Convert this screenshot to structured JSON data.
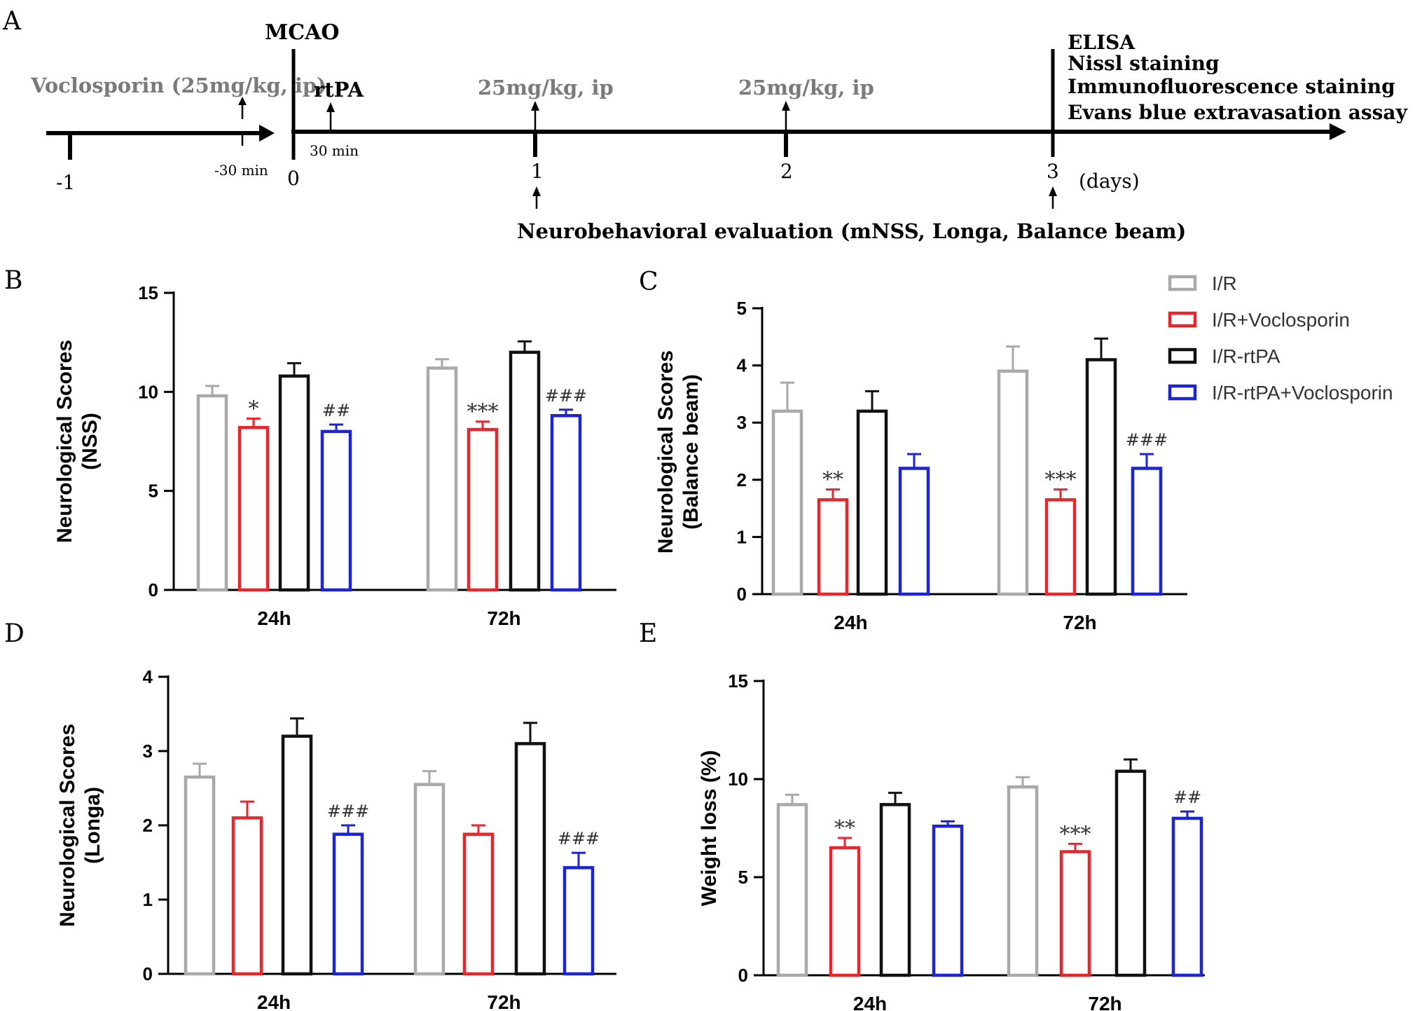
{
  "timeline": {
    "panel_label": "A",
    "pre_drug": "Voclosporin (25mg/kg, ip)",
    "mcao": "MCAO",
    "rtpa": "rtPA",
    "rtpa_delay": "30 min",
    "pre_time": "-30 min",
    "dose_day1": "25mg/kg, ip",
    "dose_day2": "25mg/kg, ip",
    "day_ticks": [
      "-1",
      "0",
      "1",
      "2",
      "3"
    ],
    "days_unit": "(days)",
    "endpoints": [
      "ELISA",
      "Nissl staining",
      "Immunofluorescence staining",
      "Evans blue extravasation assay"
    ],
    "eval": "Neurobehavioral evaluation (mNSS, Longa, Balance beam)"
  },
  "legend": {
    "items": [
      {
        "label": "I/R",
        "color": "#a9a9a9"
      },
      {
        "label": "I/R+Voclosporin",
        "color": "#e8262b"
      },
      {
        "label": "I/R-rtPA",
        "color": "#111111"
      },
      {
        "label": "I/R-rtPA+Voclosporin",
        "color": "#1c24d6"
      }
    ]
  },
  "chart_data": [
    {
      "panel": "B",
      "type": "bar",
      "ylabel_lines": [
        "Neurological Scores",
        "(NSS)"
      ],
      "categories": [
        "24h",
        "72h"
      ],
      "ylim": [
        0,
        15
      ],
      "yticks": [
        "0",
        "5",
        "10",
        "15"
      ],
      "series": [
        {
          "name": "I/R",
          "values": [
            9.8,
            11.2
          ],
          "errors": [
            0.5,
            0.45
          ],
          "annotations": [
            "",
            ""
          ]
        },
        {
          "name": "I/R+Voclosporin",
          "values": [
            8.2,
            8.1
          ],
          "errors": [
            0.45,
            0.4
          ],
          "annotations": [
            "*",
            "***"
          ]
        },
        {
          "name": "I/R-rtPA",
          "values": [
            10.8,
            12.0
          ],
          "errors": [
            0.65,
            0.55
          ],
          "annotations": [
            "",
            ""
          ]
        },
        {
          "name": "I/R-rtPA+Voclosporin",
          "values": [
            8.0,
            8.8
          ],
          "errors": [
            0.35,
            0.3
          ],
          "annotations": [
            "##",
            "###"
          ]
        }
      ]
    },
    {
      "panel": "C",
      "type": "bar",
      "ylabel_lines": [
        "Neurological Scores",
        "(Balance beam)"
      ],
      "categories": [
        "24h",
        "72h"
      ],
      "ylim": [
        0,
        5
      ],
      "yticks": [
        "0",
        "1",
        "2",
        "3",
        "4",
        "5"
      ],
      "series": [
        {
          "name": "I/R",
          "values": [
            3.2,
            3.9
          ],
          "errors": [
            0.5,
            0.43
          ],
          "annotations": [
            "",
            ""
          ]
        },
        {
          "name": "I/R+Voclosporin",
          "values": [
            1.65,
            1.65
          ],
          "errors": [
            0.18,
            0.18
          ],
          "annotations": [
            "**",
            "***"
          ]
        },
        {
          "name": "I/R-rtPA",
          "values": [
            3.2,
            4.1
          ],
          "errors": [
            0.35,
            0.37
          ],
          "annotations": [
            "",
            ""
          ]
        },
        {
          "name": "I/R-rtPA+Voclosporin",
          "values": [
            2.2,
            2.2
          ],
          "errors": [
            0.25,
            0.25
          ],
          "annotations": [
            "",
            "###"
          ]
        }
      ]
    },
    {
      "panel": "D",
      "type": "bar",
      "ylabel_lines": [
        "Neurological Scores",
        "(Longa)"
      ],
      "categories": [
        "24h",
        "72h"
      ],
      "ylim": [
        0,
        4
      ],
      "yticks": [
        "0",
        "1",
        "2",
        "3",
        "4"
      ],
      "series": [
        {
          "name": "I/R",
          "values": [
            2.65,
            2.55
          ],
          "errors": [
            0.18,
            0.18
          ],
          "annotations": [
            "",
            ""
          ]
        },
        {
          "name": "I/R+Voclosporin",
          "values": [
            2.1,
            1.88
          ],
          "errors": [
            0.22,
            0.12
          ],
          "annotations": [
            "",
            ""
          ]
        },
        {
          "name": "I/R-rtPA",
          "values": [
            3.2,
            3.1
          ],
          "errors": [
            0.24,
            0.28
          ],
          "annotations": [
            "",
            ""
          ]
        },
        {
          "name": "I/R-rtPA+Voclosporin",
          "values": [
            1.88,
            1.43
          ],
          "errors": [
            0.12,
            0.2
          ],
          "annotations": [
            "###",
            "###"
          ]
        }
      ]
    },
    {
      "panel": "E",
      "type": "bar",
      "ylabel_lines": [
        "Weight loss (%)"
      ],
      "categories": [
        "24h",
        "72h"
      ],
      "ylim": [
        0,
        15
      ],
      "yticks": [
        "0",
        "5",
        "10",
        "15"
      ],
      "series": [
        {
          "name": "I/R",
          "values": [
            8.7,
            9.6
          ],
          "errors": [
            0.5,
            0.5
          ],
          "annotations": [
            "",
            ""
          ]
        },
        {
          "name": "I/R+Voclosporin",
          "values": [
            6.5,
            6.3
          ],
          "errors": [
            0.5,
            0.4
          ],
          "annotations": [
            "**",
            "***"
          ]
        },
        {
          "name": "I/R-rtPA",
          "values": [
            8.7,
            10.4
          ],
          "errors": [
            0.6,
            0.6
          ],
          "annotations": [
            "",
            ""
          ]
        },
        {
          "name": "I/R-rtPA+Voclosporin",
          "values": [
            7.6,
            8.0
          ],
          "errors": [
            0.25,
            0.35
          ],
          "annotations": [
            "",
            "##"
          ]
        }
      ]
    }
  ]
}
